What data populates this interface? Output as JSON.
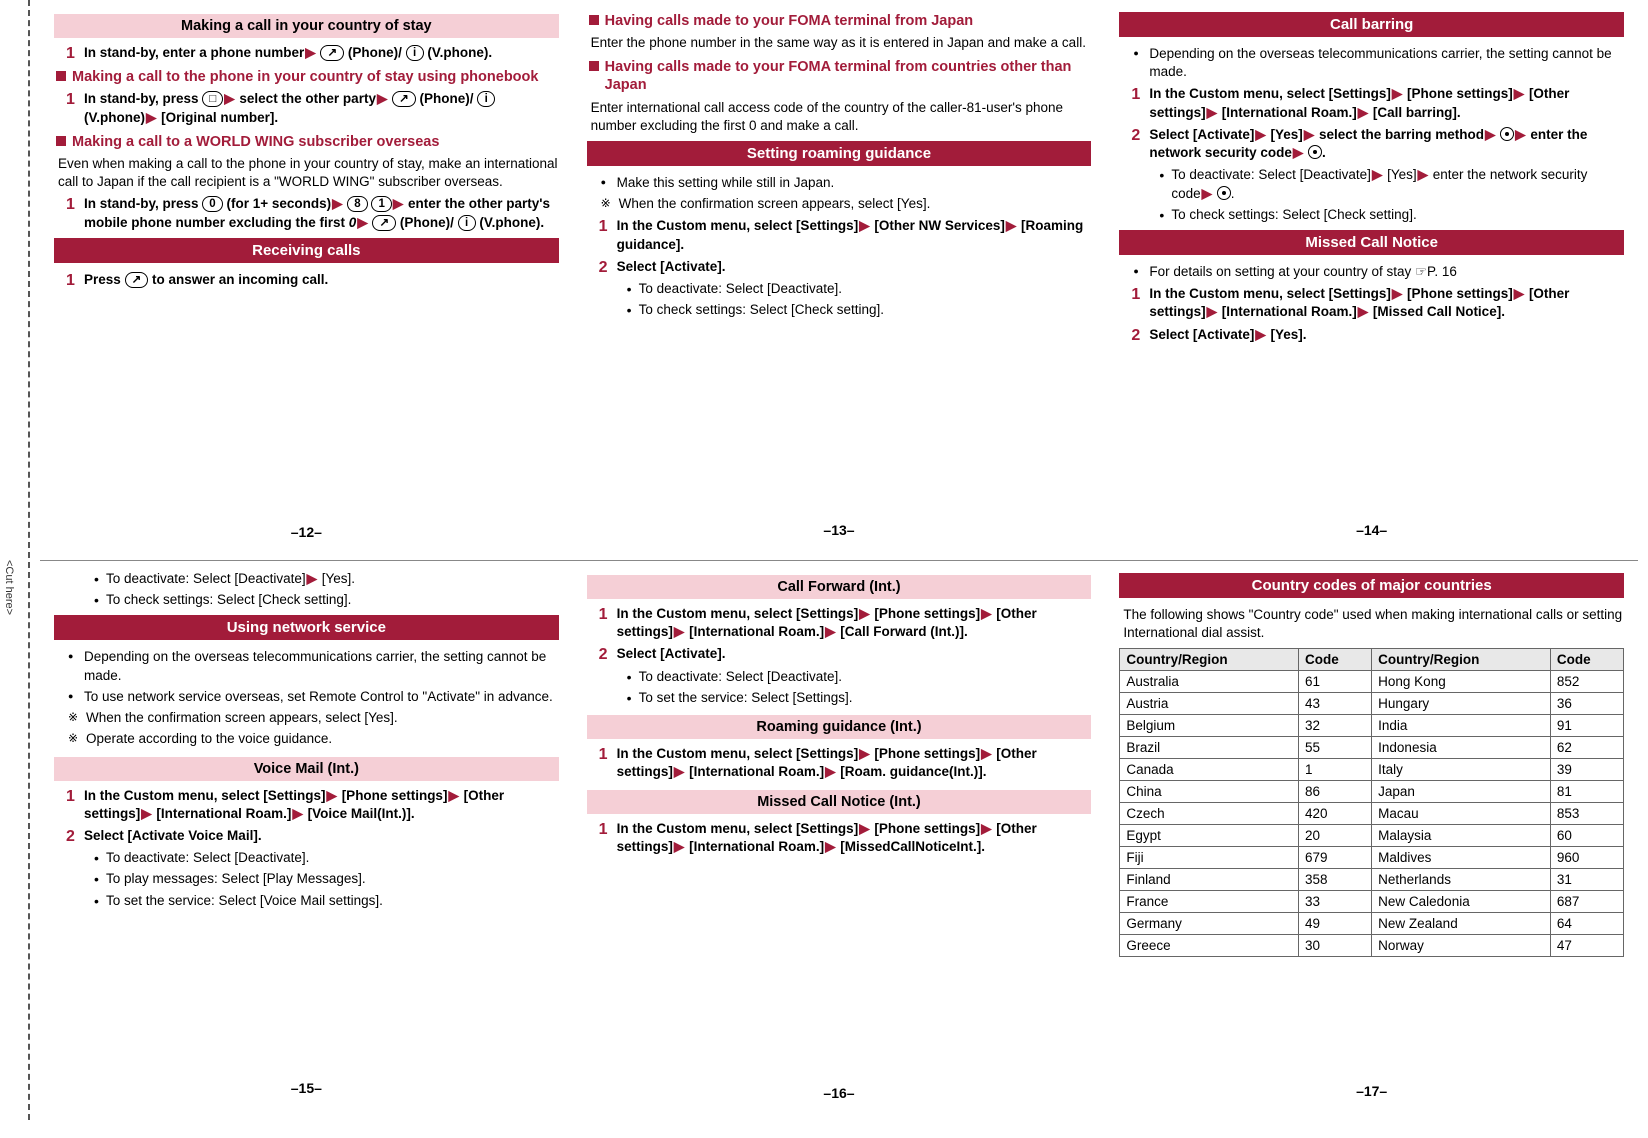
{
  "cut_label": "<Cut here>",
  "pages": {
    "p12": "–12–",
    "p13": "–13–",
    "p14": "–14–",
    "p15": "–15–",
    "p16": "–16–",
    "p17": "–17–"
  },
  "colors": {
    "accent": "#a21c3a",
    "pink_hdr": "#f5cfd6",
    "table_hdr": "#e8e8e8"
  },
  "p12": {
    "h1": "Making a call in your country of stay",
    "s1": "In stand-by, enter a phone number",
    "s1b": "(Phone)/",
    "s1c": "(V.phone).",
    "sec2": "Making a call to the phone in your country of stay using phonebook",
    "s2": "In stand-by, press",
    "s2b": "select the other party",
    "s2c": "(Phone)/",
    "s2d": "(V.phone)",
    "s2e": "[Original number].",
    "sec3": "Making a call to a WORLD WING subscriber overseas",
    "para3": "Even when making a call to the phone in your country of stay, make an international call to Japan if the call recipient is a \"WORLD WING\" subscriber overseas.",
    "s3": "In stand-by, press",
    "s3a": "(for 1+ seconds)",
    "s3b": "enter the other party's mobile phone number excluding the first",
    "s3c": "0",
    "s3d": "(Phone)/",
    "s3e": "(V.phone).",
    "h2": "Receiving calls",
    "s4": "Press",
    "s4b": "to answer an incoming call."
  },
  "p13": {
    "sec1": "Having calls made to your FOMA terminal from Japan",
    "para1": "Enter the phone number in the same way as it is entered in Japan and make a call.",
    "sec2": "Having calls made to your FOMA terminal from countries other than Japan",
    "para2": "Enter international call access code of the country of the caller-81-user's phone number excluding the first 0 and make a call.",
    "h1": "Setting roaming guidance",
    "note1": "Make this setting while still in Japan.",
    "note2": "When the confirmation screen appears, select [Yes].",
    "s1": "In the Custom menu, select [Settings]",
    "s1b": "[Other NW Services]",
    "s1c": "[Roaming guidance].",
    "s2": "Select [Activate].",
    "sub1": "To deactivate: Select [Deactivate].",
    "sub2": "To check settings: Select [Check setting]."
  },
  "p14": {
    "h1": "Call barring",
    "note1": "Depending on the overseas telecommunications carrier, the setting cannot be made.",
    "s1": "In the Custom menu, select [Settings]",
    "s1b": "[Phone settings]",
    "s1c": "[Other settings]",
    "s1d": "[International Roam.]",
    "s1e": "[Call barring].",
    "s2": "Select [Activate]",
    "s2b": "[Yes]",
    "s2c": "select the barring method",
    "s2d": "enter the network security code",
    "sub1": "To deactivate: Select [Deactivate]",
    "sub1b": "[Yes]",
    "sub1c": "enter the network security code",
    "sub2": "To check settings: Select [Check setting].",
    "h2": "Missed Call Notice",
    "note2": "For details on setting at your country of stay ☞P. 16",
    "s3": "In the Custom menu, select [Settings]",
    "s3b": "[Phone settings]",
    "s3c": "[Other settings]",
    "s3d": "[International Roam.]",
    "s3e": "[Missed Call Notice].",
    "s4": "Select [Activate]",
    "s4b": "[Yes]."
  },
  "p15": {
    "sub0a": "To deactivate: Select [Deactivate]",
    "sub0b": "[Yes].",
    "sub0c": "To check settings: Select [Check setting].",
    "h1": "Using network service",
    "note1": "Depending on the overseas telecommunications carrier, the setting cannot be made.",
    "note2": "To use network service overseas, set Remote Control to \"Activate\" in advance.",
    "note3": "When the confirmation screen appears, select [Yes].",
    "note4": "Operate according to the voice guidance.",
    "h2": "Voice Mail (Int.)",
    "s1": "In the Custom menu, select [Settings]",
    "s1b": "[Phone settings]",
    "s1c": "[Other settings]",
    "s1d": "[International Roam.]",
    "s1e": "[Voice Mail(Int.)].",
    "s2": "Select [Activate Voice Mail].",
    "sub1": "To deactivate: Select [Deactivate].",
    "sub2": "To play messages: Select [Play Messages].",
    "sub3": "To set the service: Select [Voice Mail settings]."
  },
  "p16": {
    "h1": "Call Forward (Int.)",
    "s1": "In the Custom menu, select [Settings]",
    "s1b": "[Phone settings]",
    "s1c": "[Other settings]",
    "s1d": "[International Roam.]",
    "s1e": "[Call Forward (Int.)].",
    "s2": "Select [Activate].",
    "sub1": "To deactivate: Select [Deactivate].",
    "sub2": "To set the service: Select [Settings].",
    "h2": "Roaming guidance (Int.)",
    "s3": "In the Custom menu, select [Settings]",
    "s3b": "[Phone settings]",
    "s3c": "[Other settings]",
    "s3d": "[International Roam.]",
    "s3e": "[Roam. guidance(Int.)].",
    "h3": "Missed Call Notice (Int.)",
    "s4": "In the Custom menu, select [Settings]",
    "s4b": "[Phone settings]",
    "s4c": "[Other settings]",
    "s4d": "[International Roam.]",
    "s4e": "[MissedCallNoticeInt.]."
  },
  "p17": {
    "h1": "Country codes of major countries",
    "intro": "The following shows \"Country code\" used when making international calls or setting International dial assist.",
    "th1": "Country/Region",
    "th2": "Code",
    "th3": "Country/Region",
    "th4": "Code",
    "rows": [
      [
        "Australia",
        "61",
        "Hong Kong",
        "852"
      ],
      [
        "Austria",
        "43",
        "Hungary",
        "36"
      ],
      [
        "Belgium",
        "32",
        "India",
        "91"
      ],
      [
        "Brazil",
        "55",
        "Indonesia",
        "62"
      ],
      [
        "Canada",
        "1",
        "Italy",
        "39"
      ],
      [
        "China",
        "86",
        "Japan",
        "81"
      ],
      [
        "Czech",
        "420",
        "Macau",
        "853"
      ],
      [
        "Egypt",
        "20",
        "Malaysia",
        "60"
      ],
      [
        "Fiji",
        "679",
        "Maldives",
        "960"
      ],
      [
        "Finland",
        "358",
        "Netherlands",
        "31"
      ],
      [
        "France",
        "33",
        "New Caledonia",
        "687"
      ],
      [
        "Germany",
        "49",
        "New Zealand",
        "64"
      ],
      [
        "Greece",
        "30",
        "Norway",
        "47"
      ]
    ]
  },
  "keys": {
    "phone": "↗",
    "info": "i",
    "book": "□",
    "zero": "0",
    "eight": "8",
    "one": "1"
  }
}
